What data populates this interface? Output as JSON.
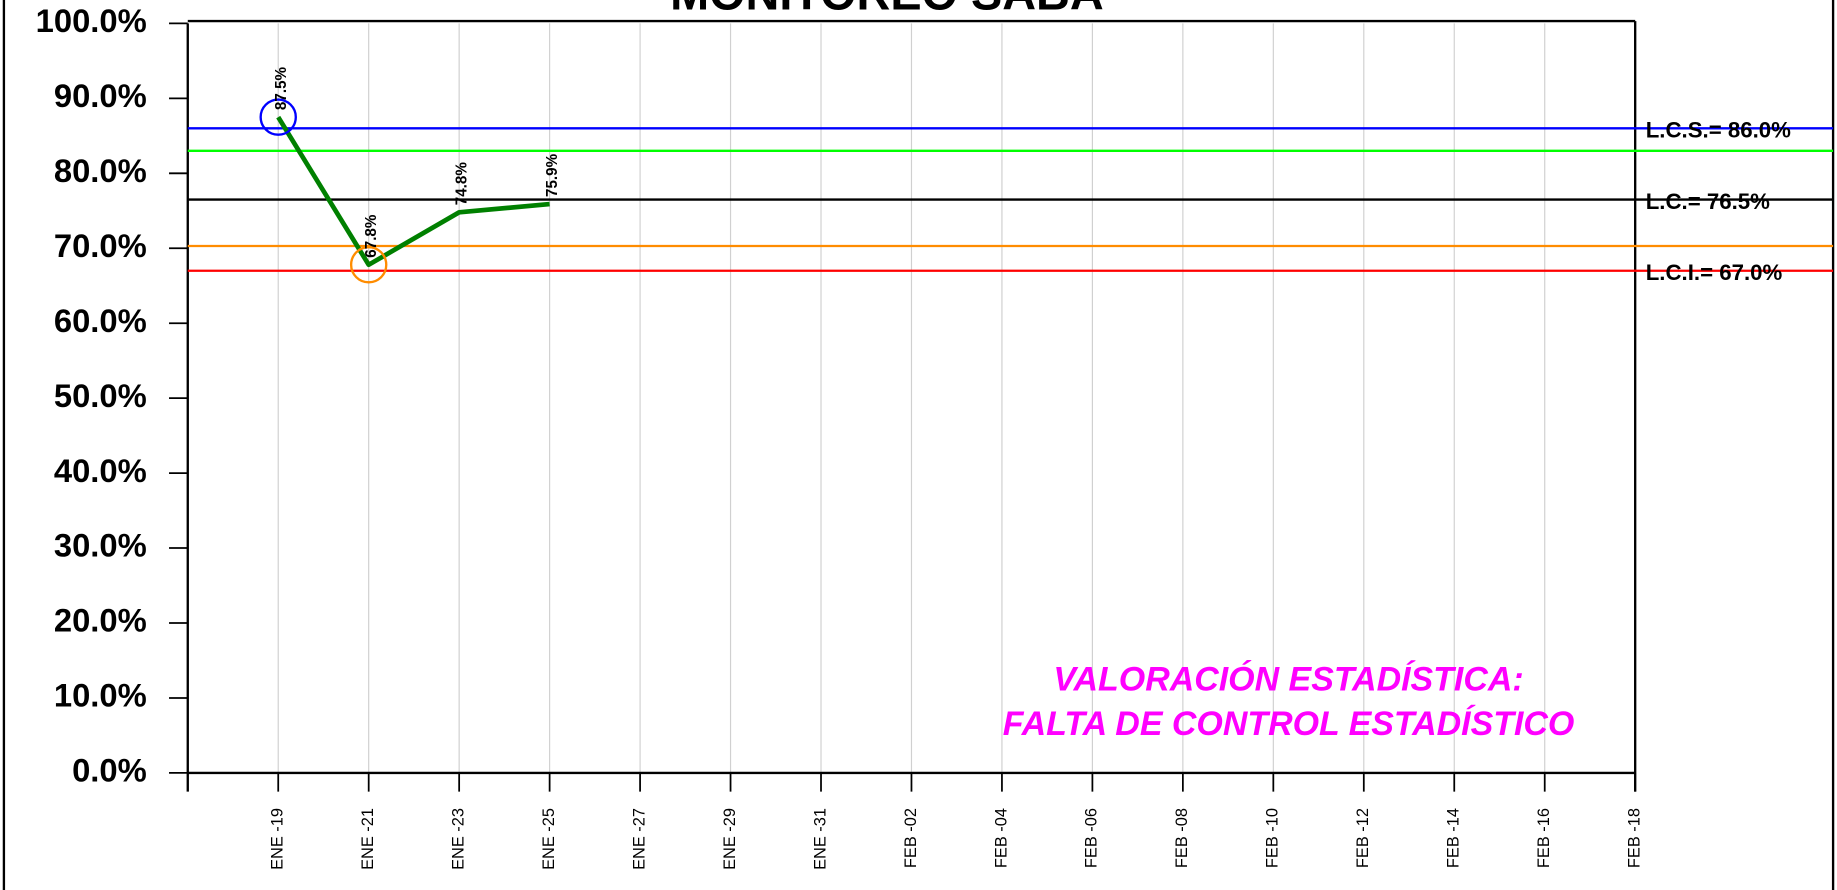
{
  "chart_data": {
    "type": "line",
    "title": "MONITOREO SABA",
    "categories": [
      "ENE -19",
      "ENE -21",
      "ENE -23",
      "ENE -25",
      "ENE -27",
      "ENE -29",
      "ENE -31",
      "FEB -02",
      "FEB -04",
      "FEB -06",
      "FEB -08",
      "FEB -10",
      "FEB -12",
      "FEB -14",
      "FEB -16",
      "FEB -18"
    ],
    "series": [
      {
        "name": "SABA",
        "color": "#008000",
        "values": [
          87.5,
          67.8,
          74.8,
          75.9,
          null,
          null,
          null,
          null,
          null,
          null,
          null,
          null,
          null,
          null,
          null,
          null
        ],
        "value_labels": [
          "87.5%",
          "67.8%",
          "74.8%",
          "75.9%",
          null,
          null,
          null,
          null,
          null,
          null,
          null,
          null,
          null,
          null,
          null,
          null
        ],
        "marker_colors": [
          "#0000ff",
          "#ff8c00",
          null,
          null,
          null,
          null,
          null,
          null,
          null,
          null,
          null,
          null,
          null,
          null,
          null,
          null
        ]
      }
    ],
    "ylim": [
      0,
      100
    ],
    "yticks": [
      {
        "value": 0,
        "label": "0.0%"
      },
      {
        "value": 10,
        "label": "10.0%"
      },
      {
        "value": 20,
        "label": "20.0%"
      },
      {
        "value": 30,
        "label": "30.0%"
      },
      {
        "value": 40,
        "label": "40.0%"
      },
      {
        "value": 50,
        "label": "50.0%"
      },
      {
        "value": 60,
        "label": "60.0%"
      },
      {
        "value": 70,
        "label": "70.0%"
      },
      {
        "value": 80,
        "label": "80.0%"
      },
      {
        "value": 90,
        "label": "90.0%"
      },
      {
        "value": 100,
        "label": "100.0%"
      }
    ],
    "reference_lines": [
      {
        "value": 86.0,
        "color": "#0000ff",
        "label": "L.C.S.= 86.0%"
      },
      {
        "value": 83.0,
        "color": "#00ff00"
      },
      {
        "value": 76.5,
        "color": "#000000",
        "label": "L.C.= 76.5%"
      },
      {
        "value": 70.3,
        "color": "#ff8c00"
      },
      {
        "value": 67.0,
        "color": "#ff0000",
        "label": "L.C.I.= 67.0%"
      }
    ],
    "annotation": [
      "VALORACIÓN ESTADÍSTICA:",
      "FALTA DE CONTROL ESTADÍSTICO"
    ],
    "annotation_color": "#ff00ff",
    "grid": true
  }
}
